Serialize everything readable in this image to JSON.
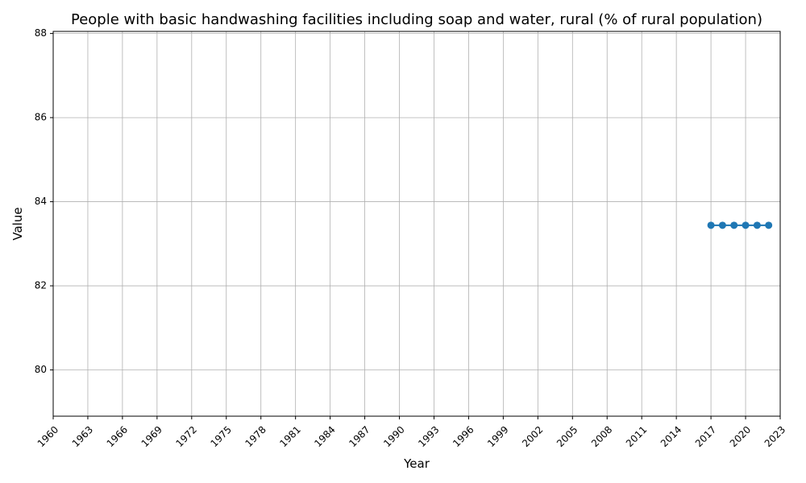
{
  "chart_data": {
    "type": "line",
    "title": "People with basic handwashing facilities including soap and water, rural (% of rural population)",
    "xlabel": "Year",
    "ylabel": "Value",
    "xlim": [
      1960,
      2023
    ],
    "ylim": [
      78.9,
      88.05
    ],
    "grid": true,
    "x_ticks": [
      1960,
      1963,
      1966,
      1969,
      1972,
      1975,
      1978,
      1981,
      1984,
      1987,
      1990,
      1993,
      1996,
      1999,
      2002,
      2005,
      2008,
      2011,
      2014,
      2017,
      2020,
      2023
    ],
    "y_ticks": [
      80,
      82,
      84,
      86,
      88
    ],
    "series": [
      {
        "name": "Value",
        "color": "#1f77b4",
        "marker": "circle",
        "x": [
          2017,
          2018,
          2019,
          2020,
          2021,
          2022
        ],
        "values": [
          83.44,
          83.44,
          83.44,
          83.44,
          83.44,
          83.44
        ]
      }
    ]
  },
  "colors": {
    "grid": "#b0b0b0",
    "axes": "#000000",
    "background": "#ffffff"
  }
}
